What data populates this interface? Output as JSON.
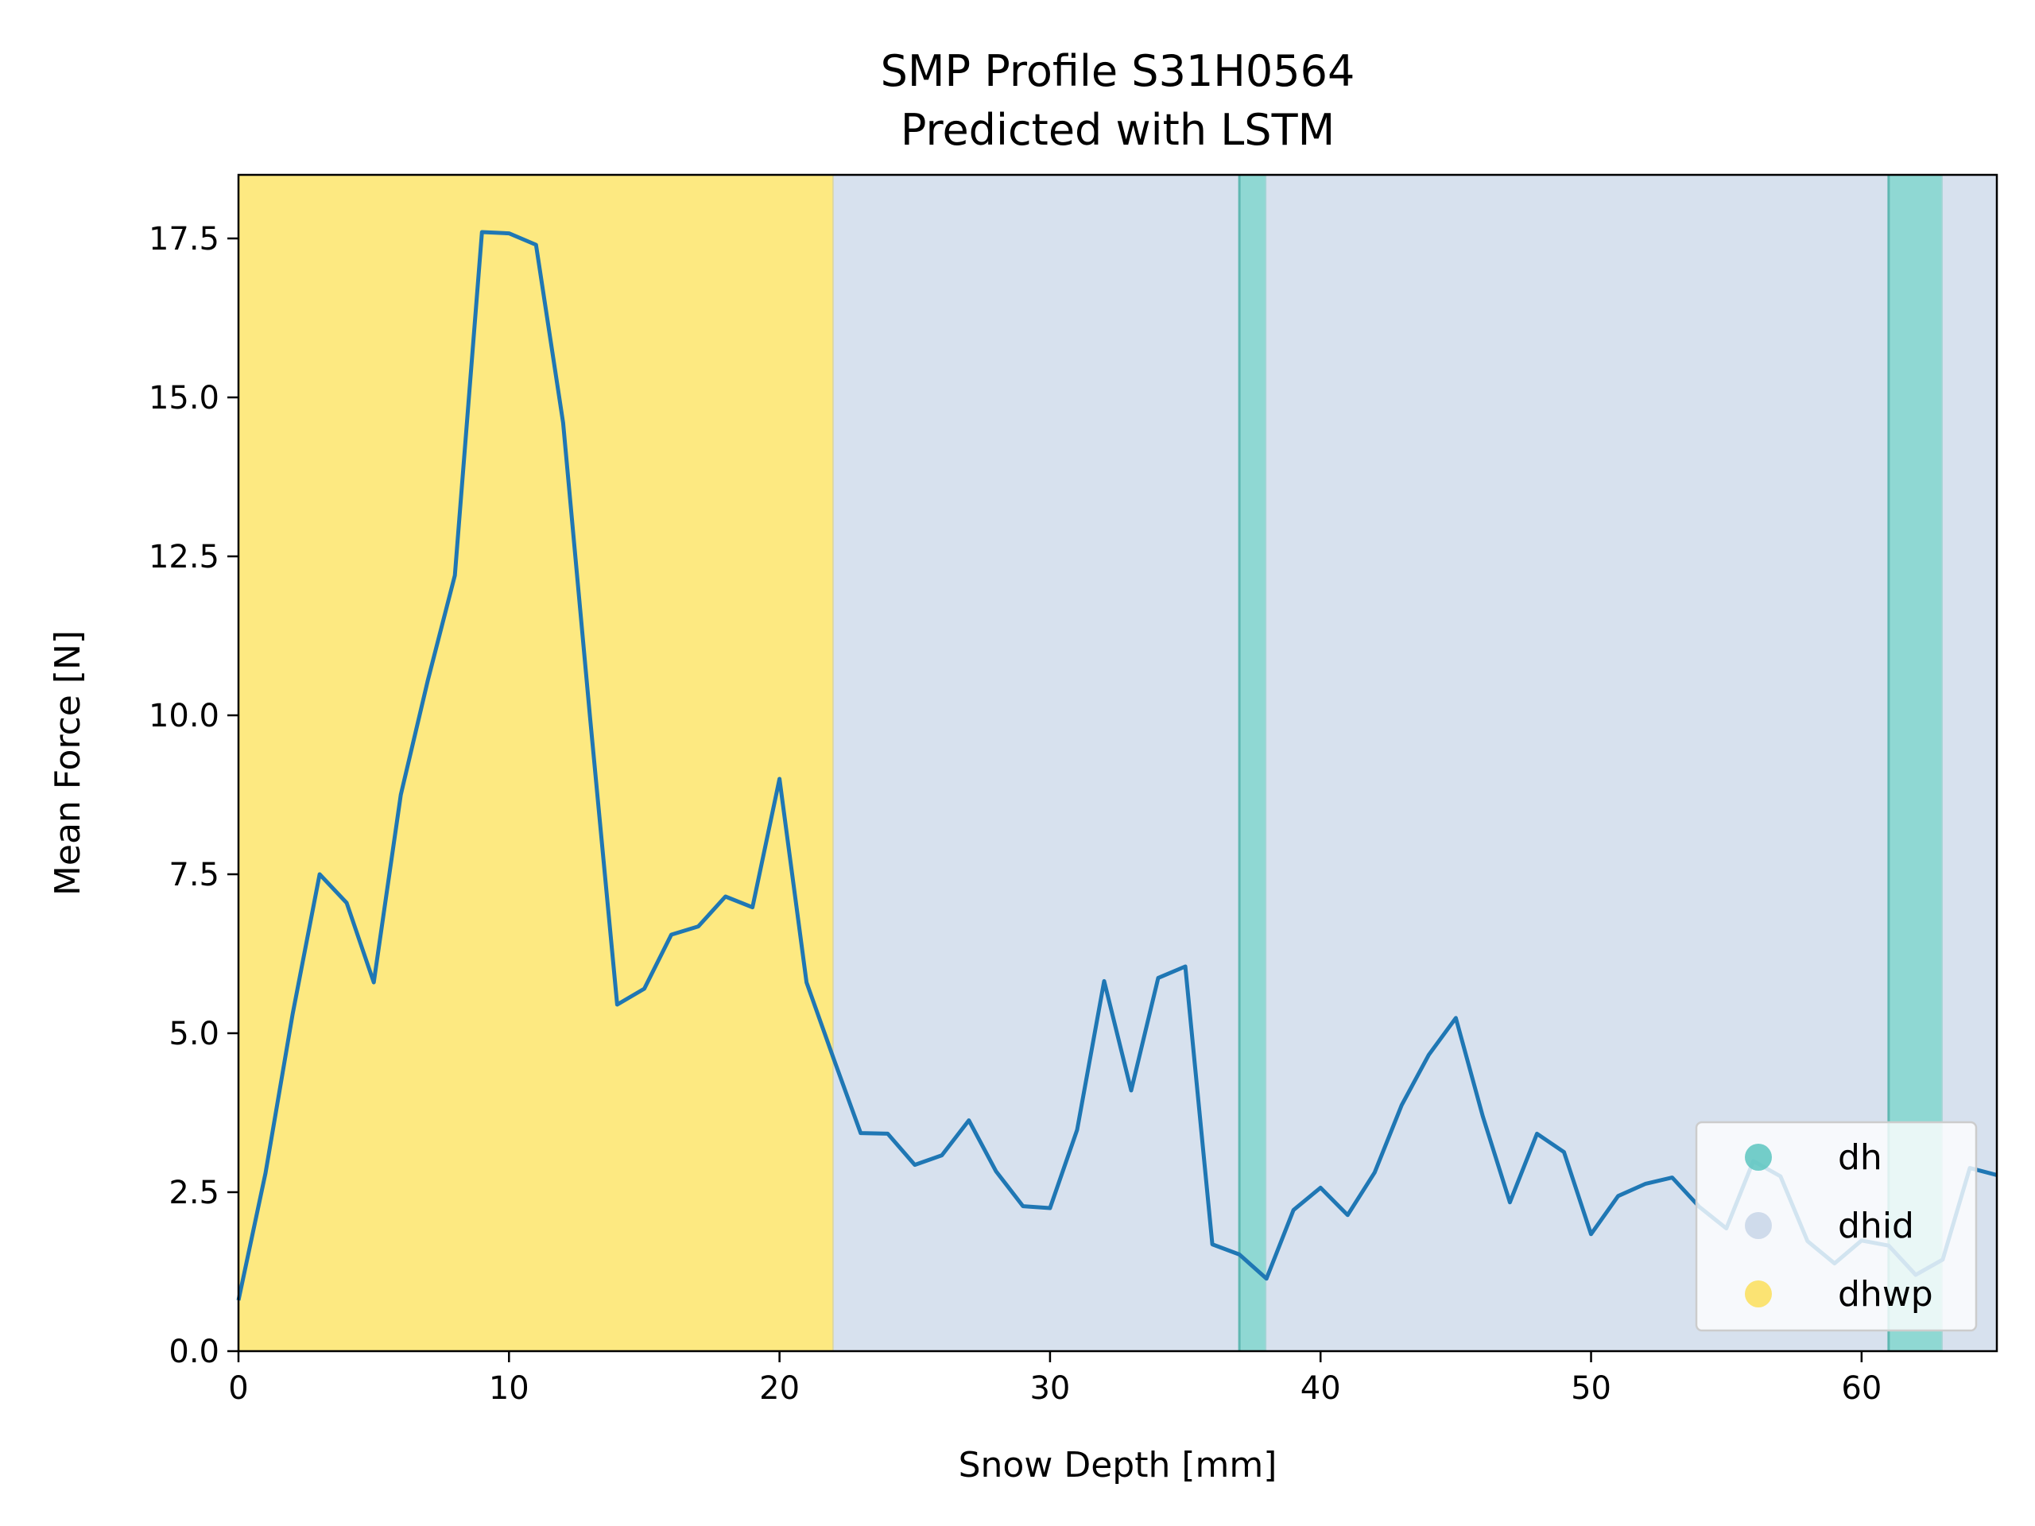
{
  "chart_data": {
    "type": "line",
    "title": "SMP Profile S31H0564",
    "subtitle": "Predicted with LSTM",
    "xlabel": "Snow Depth [mm]",
    "ylabel": "Mean Force [N]",
    "xlim": [
      0,
      65
    ],
    "ylim": [
      0,
      18.5
    ],
    "x_ticks": [
      0,
      10,
      20,
      30,
      40,
      50,
      60
    ],
    "y_ticks": [
      0,
      2.5,
      5,
      7.5,
      10,
      12.5,
      15,
      17.5
    ],
    "x_tick_labels": [
      "0",
      "10",
      "20",
      "30",
      "40",
      "50",
      "60"
    ],
    "y_tick_labels": [
      "0.0",
      "2.5",
      "5.0",
      "7.5",
      "10.0",
      "12.5",
      "15.0",
      "17.5"
    ],
    "grid": false,
    "legend_position": "bottom-right",
    "line_color": "#1f77b4",
    "regions": [
      {
        "label": "dhwp",
        "start": 0,
        "end": 22
      },
      {
        "label": "dhid",
        "start": 22,
        "end": 37
      },
      {
        "label": "dh",
        "start": 37,
        "end": 38
      },
      {
        "label": "dhid",
        "start": 38,
        "end": 61
      },
      {
        "label": "dh",
        "start": 61,
        "end": 63
      },
      {
        "label": "dhid",
        "start": 63,
        "end": 65
      }
    ],
    "legend": [
      {
        "label": "dh",
        "color": "#5cc6bf"
      },
      {
        "label": "dhid",
        "color": "#c8d6e8"
      },
      {
        "label": "dhwp",
        "color": "#fbdf5a"
      }
    ],
    "region_colors": {
      "dh": "#8fd8d3",
      "dhid": "#d7e1ee",
      "dhwp": "#fde981"
    },
    "series": [
      {
        "x": [
          0,
          1,
          2,
          3,
          4,
          5,
          6,
          7,
          8,
          9,
          10,
          11,
          12,
          13,
          14,
          15,
          16,
          17,
          18,
          19,
          20,
          21,
          22,
          23,
          24,
          25,
          26,
          27,
          28,
          29,
          30,
          31,
          32,
          33,
          34,
          35,
          36,
          37,
          38,
          39,
          40,
          41,
          42,
          43,
          44,
          45,
          46,
          47,
          48,
          49,
          50,
          51,
          52,
          53,
          54,
          55,
          56,
          57,
          58,
          59,
          60,
          61,
          62,
          63,
          64,
          65
        ],
        "values": [
          0.8,
          2.8,
          5.3,
          7.5,
          7.05,
          5.8,
          8.75,
          10.55,
          12.2,
          17.6,
          17.58,
          17.4,
          14.6,
          9.95,
          5.45,
          5.7,
          6.55,
          6.68,
          7.15,
          6.98,
          9.0,
          5.8,
          4.6,
          3.43,
          3.42,
          2.93,
          3.08,
          3.63,
          2.83,
          2.28,
          2.25,
          3.48,
          5.82,
          4.1,
          5.87,
          6.05,
          1.68,
          1.52,
          1.14,
          2.22,
          2.57,
          2.14,
          2.81,
          3.87,
          4.66,
          5.24,
          3.69,
          2.34,
          3.42,
          3.13,
          1.84,
          2.44,
          2.63,
          2.73,
          2.27,
          1.93,
          2.99,
          2.75,
          1.73,
          1.38,
          1.74,
          1.66,
          1.2,
          1.44,
          2.88,
          2.77
        ]
      }
    ]
  }
}
